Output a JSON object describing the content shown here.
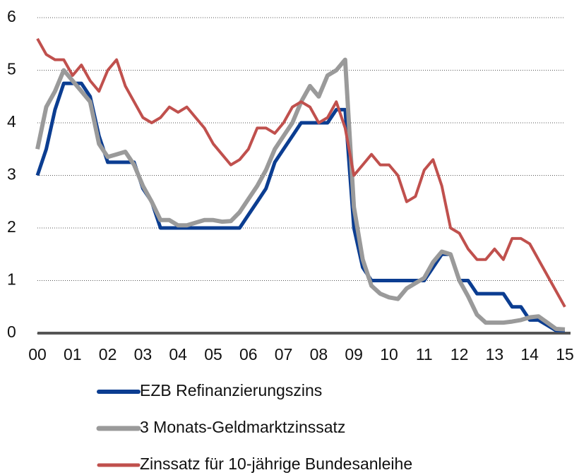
{
  "chart_data": {
    "type": "line",
    "x": [
      2000,
      2000.25,
      2000.5,
      2000.75,
      2001,
      2001.25,
      2001.5,
      2001.75,
      2002,
      2002.25,
      2002.5,
      2002.75,
      2003,
      2003.25,
      2003.5,
      2003.75,
      2004,
      2004.25,
      2004.5,
      2004.75,
      2005,
      2005.25,
      2005.5,
      2005.75,
      2006,
      2006.25,
      2006.5,
      2006.75,
      2007,
      2007.25,
      2007.5,
      2007.75,
      2008,
      2008.25,
      2008.5,
      2008.75,
      2009,
      2009.25,
      2009.5,
      2009.75,
      2010,
      2010.25,
      2010.5,
      2010.75,
      2011,
      2011.25,
      2011.5,
      2011.75,
      2012,
      2012.25,
      2012.5,
      2012.75,
      2013,
      2013.25,
      2013.5,
      2013.75,
      2014,
      2014.25,
      2014.5,
      2014.75,
      2015
    ],
    "series": [
      {
        "name": "EZB Refinanzierungszins",
        "color": "#0b3d91",
        "values": [
          3.0,
          3.5,
          4.25,
          4.75,
          4.75,
          4.75,
          4.5,
          3.75,
          3.25,
          3.25,
          3.25,
          3.25,
          2.75,
          2.5,
          2.0,
          2.0,
          2.0,
          2.0,
          2.0,
          2.0,
          2.0,
          2.0,
          2.0,
          2.0,
          2.25,
          2.5,
          2.75,
          3.25,
          3.5,
          3.75,
          4.0,
          4.0,
          4.0,
          4.0,
          4.25,
          4.25,
          2.0,
          1.25,
          1.0,
          1.0,
          1.0,
          1.0,
          1.0,
          1.0,
          1.0,
          1.25,
          1.5,
          1.5,
          1.0,
          1.0,
          0.75,
          0.75,
          0.75,
          0.75,
          0.5,
          0.5,
          0.25,
          0.25,
          0.15,
          0.05,
          0.05
        ]
      },
      {
        "name": "3 Monats-Geldmarktzinssatz",
        "color": "#9a9a9a",
        "values": [
          3.5,
          4.3,
          4.6,
          5.0,
          4.8,
          4.6,
          4.4,
          3.6,
          3.35,
          3.4,
          3.45,
          3.2,
          2.8,
          2.5,
          2.15,
          2.15,
          2.05,
          2.05,
          2.1,
          2.15,
          2.15,
          2.12,
          2.13,
          2.3,
          2.55,
          2.8,
          3.1,
          3.5,
          3.75,
          4.0,
          4.4,
          4.7,
          4.5,
          4.9,
          5.0,
          5.2,
          2.4,
          1.4,
          0.9,
          0.75,
          0.68,
          0.65,
          0.85,
          0.95,
          1.05,
          1.35,
          1.55,
          1.5,
          1.0,
          0.7,
          0.35,
          0.2,
          0.2,
          0.2,
          0.22,
          0.25,
          0.3,
          0.32,
          0.2,
          0.08,
          0.07
        ]
      },
      {
        "name": "Zinssatz für 10-jährige Bundesanleihe",
        "color": "#c0504d",
        "values": [
          5.6,
          5.3,
          5.2,
          5.2,
          4.9,
          5.1,
          4.8,
          4.6,
          5.0,
          5.2,
          4.7,
          4.4,
          4.1,
          4.0,
          4.1,
          4.3,
          4.2,
          4.3,
          4.1,
          3.9,
          3.6,
          3.4,
          3.2,
          3.3,
          3.5,
          3.9,
          3.9,
          3.8,
          4.0,
          4.3,
          4.4,
          4.3,
          4.0,
          4.1,
          4.4,
          3.9,
          3.0,
          3.2,
          3.4,
          3.2,
          3.2,
          3.0,
          2.5,
          2.6,
          3.1,
          3.3,
          2.8,
          2.0,
          1.9,
          1.6,
          1.4,
          1.4,
          1.6,
          1.4,
          1.8,
          1.8,
          1.7,
          1.4,
          1.1,
          0.8,
          0.5
        ]
      }
    ],
    "xlim": [
      2000,
      2015
    ],
    "xticks": [
      {
        "value": 2000,
        "label": "00"
      },
      {
        "value": 2001,
        "label": "01"
      },
      {
        "value": 2002,
        "label": "02"
      },
      {
        "value": 2003,
        "label": "03"
      },
      {
        "value": 2004,
        "label": "04"
      },
      {
        "value": 2005,
        "label": "05"
      },
      {
        "value": 2006,
        "label": "06"
      },
      {
        "value": 2007,
        "label": "07"
      },
      {
        "value": 2008,
        "label": "08"
      },
      {
        "value": 2009,
        "label": "09"
      },
      {
        "value": 2010,
        "label": "10"
      },
      {
        "value": 2011,
        "label": "11"
      },
      {
        "value": 2012,
        "label": "12"
      },
      {
        "value": 2013,
        "label": "13"
      },
      {
        "value": 2014,
        "label": "14"
      },
      {
        "value": 2015,
        "label": "15"
      }
    ],
    "ylim": [
      0,
      6
    ],
    "yticks": [
      0,
      1,
      2,
      3,
      4,
      5,
      6
    ],
    "grid": true,
    "legend": "bottom"
  }
}
